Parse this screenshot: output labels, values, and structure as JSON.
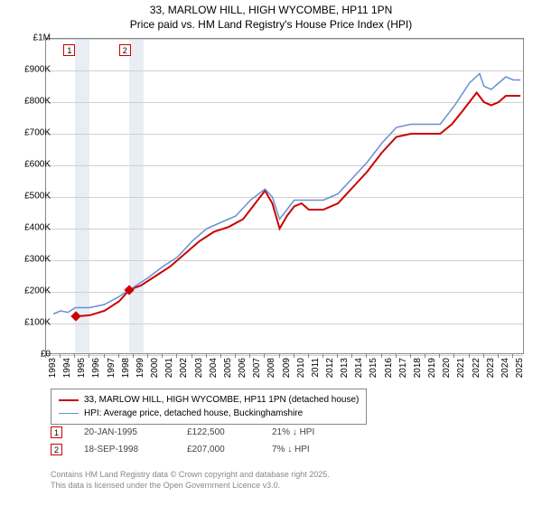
{
  "title_line1": "33, MARLOW HILL, HIGH WYCOMBE, HP11 1PN",
  "title_line2": "Price paid vs. HM Land Registry's House Price Index (HPI)",
  "chart": {
    "type": "line",
    "background_color": "#ffffff",
    "grid_color": "#d0d0d0",
    "border_color": "#888888",
    "shade_color": "#e9edf4",
    "xlim": [
      1993,
      2025.8
    ],
    "ylim": [
      0,
      1000000
    ],
    "y_ticks": [
      0,
      100000,
      200000,
      300000,
      400000,
      500000,
      600000,
      700000,
      800000,
      900000,
      1000000
    ],
    "y_tick_labels": [
      "£0",
      "£100K",
      "£200K",
      "£300K",
      "£400K",
      "£500K",
      "£600K",
      "£700K",
      "£800K",
      "£900K",
      "£1M"
    ],
    "x_ticks": [
      1993,
      1994,
      1995,
      1996,
      1997,
      1998,
      1999,
      2000,
      2001,
      2002,
      2003,
      2004,
      2005,
      2006,
      2007,
      2008,
      2009,
      2010,
      2011,
      2012,
      2013,
      2014,
      2015,
      2016,
      2017,
      2018,
      2019,
      2020,
      2021,
      2022,
      2023,
      2024,
      2025
    ],
    "shaded_ranges": [
      [
        1995.0,
        1996.0
      ],
      [
        1998.7,
        1999.7
      ]
    ],
    "series": [
      {
        "name": "price_paid",
        "color": "#cc0000",
        "width": 2,
        "points": [
          [
            1995.05,
            122500
          ],
          [
            1996,
            126000
          ],
          [
            1997,
            140000
          ],
          [
            1998,
            170000
          ],
          [
            1998.72,
            207000
          ],
          [
            1999.5,
            220000
          ],
          [
            2000.5,
            250000
          ],
          [
            2001.5,
            280000
          ],
          [
            2002.5,
            320000
          ],
          [
            2003.5,
            360000
          ],
          [
            2004.5,
            390000
          ],
          [
            2005.5,
            405000
          ],
          [
            2006.5,
            430000
          ],
          [
            2007.5,
            490000
          ],
          [
            2008,
            520000
          ],
          [
            2008.5,
            480000
          ],
          [
            2009,
            400000
          ],
          [
            2009.5,
            440000
          ],
          [
            2010,
            470000
          ],
          [
            2010.5,
            480000
          ],
          [
            2011,
            460000
          ],
          [
            2012,
            460000
          ],
          [
            2013,
            480000
          ],
          [
            2014,
            530000
          ],
          [
            2015,
            580000
          ],
          [
            2016,
            640000
          ],
          [
            2017,
            690000
          ],
          [
            2018,
            700000
          ],
          [
            2019,
            700000
          ],
          [
            2020,
            700000
          ],
          [
            2020.8,
            730000
          ],
          [
            2021.5,
            770000
          ],
          [
            2022,
            800000
          ],
          [
            2022.5,
            830000
          ],
          [
            2023,
            800000
          ],
          [
            2023.5,
            790000
          ],
          [
            2024,
            800000
          ],
          [
            2024.5,
            820000
          ],
          [
            2025,
            820000
          ],
          [
            2025.5,
            820000
          ]
        ]
      },
      {
        "name": "hpi",
        "color": "#6a8fd0",
        "width": 1.5,
        "points": [
          [
            1993.5,
            130000
          ],
          [
            1994,
            140000
          ],
          [
            1994.5,
            135000
          ],
          [
            1995,
            150000
          ],
          [
            1996,
            150000
          ],
          [
            1997,
            160000
          ],
          [
            1998,
            185000
          ],
          [
            1999,
            215000
          ],
          [
            2000,
            245000
          ],
          [
            2001,
            280000
          ],
          [
            2002,
            310000
          ],
          [
            2003,
            360000
          ],
          [
            2004,
            400000
          ],
          [
            2005,
            420000
          ],
          [
            2006,
            440000
          ],
          [
            2007,
            490000
          ],
          [
            2008,
            525000
          ],
          [
            2008.5,
            500000
          ],
          [
            2009,
            430000
          ],
          [
            2009.5,
            460000
          ],
          [
            2010,
            490000
          ],
          [
            2011,
            490000
          ],
          [
            2012,
            490000
          ],
          [
            2013,
            510000
          ],
          [
            2014,
            560000
          ],
          [
            2015,
            610000
          ],
          [
            2016,
            670000
          ],
          [
            2017,
            720000
          ],
          [
            2018,
            730000
          ],
          [
            2019,
            730000
          ],
          [
            2020,
            730000
          ],
          [
            2021,
            790000
          ],
          [
            2022,
            860000
          ],
          [
            2022.7,
            890000
          ],
          [
            2023,
            850000
          ],
          [
            2023.5,
            840000
          ],
          [
            2024,
            860000
          ],
          [
            2024.5,
            880000
          ],
          [
            2025,
            870000
          ],
          [
            2025.5,
            870000
          ]
        ]
      }
    ],
    "sale_markers": [
      {
        "num": "1",
        "x": 1995.05,
        "y": 122500,
        "box_x": 1994.2
      },
      {
        "num": "2",
        "x": 1998.72,
        "y": 207000,
        "box_x": 1998.0
      }
    ]
  },
  "legend": {
    "items": [
      {
        "color": "#cc0000",
        "width": 2,
        "label": "33, MARLOW HILL, HIGH WYCOMBE, HP11 1PN (detached house)"
      },
      {
        "color": "#6a8fd0",
        "width": 1.5,
        "label": "HPI: Average price, detached house, Buckinghamshire"
      }
    ]
  },
  "sales": [
    {
      "num": "1",
      "date": "20-JAN-1995",
      "price": "£122,500",
      "hpi_delta": "21% ↓ HPI"
    },
    {
      "num": "2",
      "date": "18-SEP-1998",
      "price": "£207,000",
      "hpi_delta": "7% ↓ HPI"
    }
  ],
  "footnote_line1": "Contains HM Land Registry data © Crown copyright and database right 2025.",
  "footnote_line2": "This data is licensed under the Open Government Licence v3.0."
}
